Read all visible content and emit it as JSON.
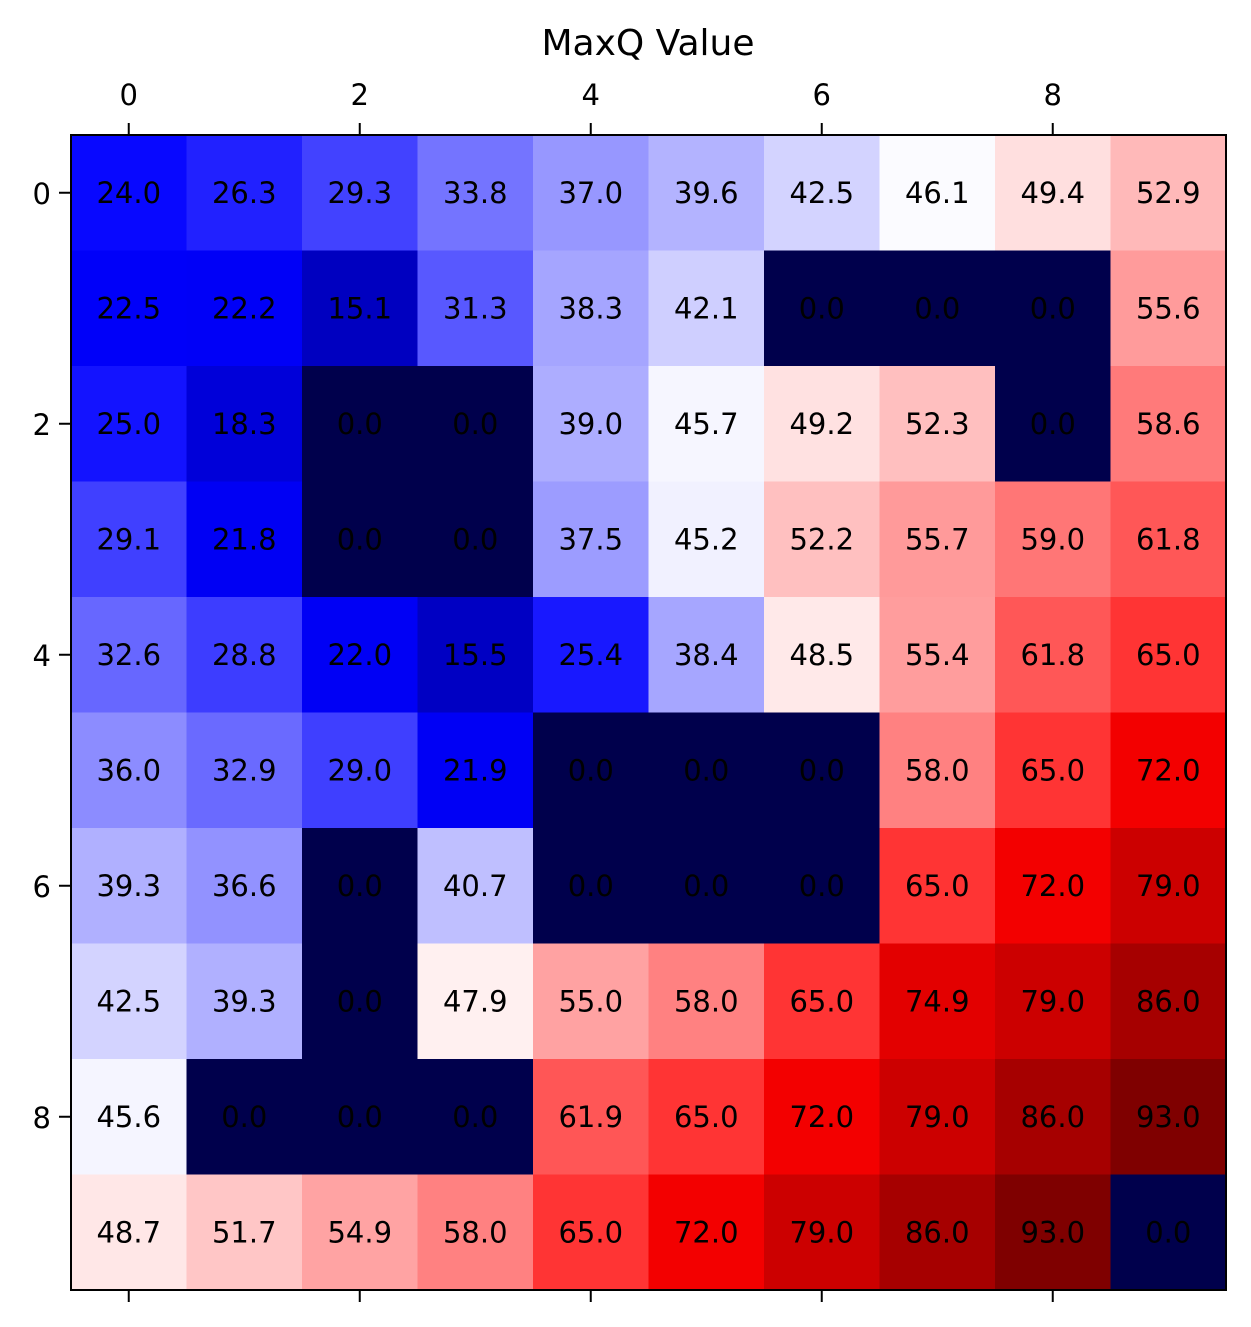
{
  "chart_data": {
    "type": "heatmap",
    "title": "MaxQ Value",
    "xlabel": "",
    "ylabel": "",
    "colormap": "seismic",
    "value_range": [
      0,
      93
    ],
    "obstacle_color": "#00004c",
    "x_ticks": [
      0,
      2,
      4,
      6,
      8
    ],
    "y_ticks": [
      0,
      2,
      4,
      6,
      8
    ],
    "x_tick_labels": [
      "0",
      "2",
      "4",
      "6",
      "8"
    ],
    "y_tick_labels": [
      "0",
      "2",
      "4",
      "6",
      "8"
    ],
    "x_axis_position": "top",
    "grid": false,
    "rows": [
      [
        "24.0",
        "26.3",
        "29.3",
        "33.8",
        "37.0",
        "39.6",
        "42.5",
        "46.1",
        "49.4",
        "52.9"
      ],
      [
        "22.5",
        "22.2",
        "15.1",
        "31.3",
        "38.3",
        "42.1",
        "0.0",
        "0.0",
        "0.0",
        "55.6"
      ],
      [
        "25.0",
        "18.3",
        "0.0",
        "0.0",
        "39.0",
        "45.7",
        "49.2",
        "52.3",
        "0.0",
        "58.6"
      ],
      [
        "29.1",
        "21.8",
        "0.0",
        "0.0",
        "37.5",
        "45.2",
        "52.2",
        "55.7",
        "59.0",
        "61.8"
      ],
      [
        "32.6",
        "28.8",
        "22.0",
        "15.5",
        "25.4",
        "38.4",
        "48.5",
        "55.4",
        "61.8",
        "65.0"
      ],
      [
        "36.0",
        "32.9",
        "29.0",
        "21.9",
        "0.0",
        "0.0",
        "0.0",
        "58.0",
        "65.0",
        "72.0"
      ],
      [
        "39.3",
        "36.6",
        "0.0",
        "40.7",
        "0.0",
        "0.0",
        "0.0",
        "65.0",
        "72.0",
        "79.0"
      ],
      [
        "42.5",
        "39.3",
        "0.0",
        "47.9",
        "55.0",
        "58.0",
        "65.0",
        "74.9",
        "79.0",
        "86.0"
      ],
      [
        "45.6",
        "0.0",
        "0.0",
        "0.0",
        "61.9",
        "65.0",
        "72.0",
        "79.0",
        "86.0",
        "93.0"
      ],
      [
        "48.7",
        "51.7",
        "54.9",
        "58.0",
        "65.0",
        "72.0",
        "79.0",
        "86.0",
        "93.0",
        "0.0"
      ]
    ]
  }
}
